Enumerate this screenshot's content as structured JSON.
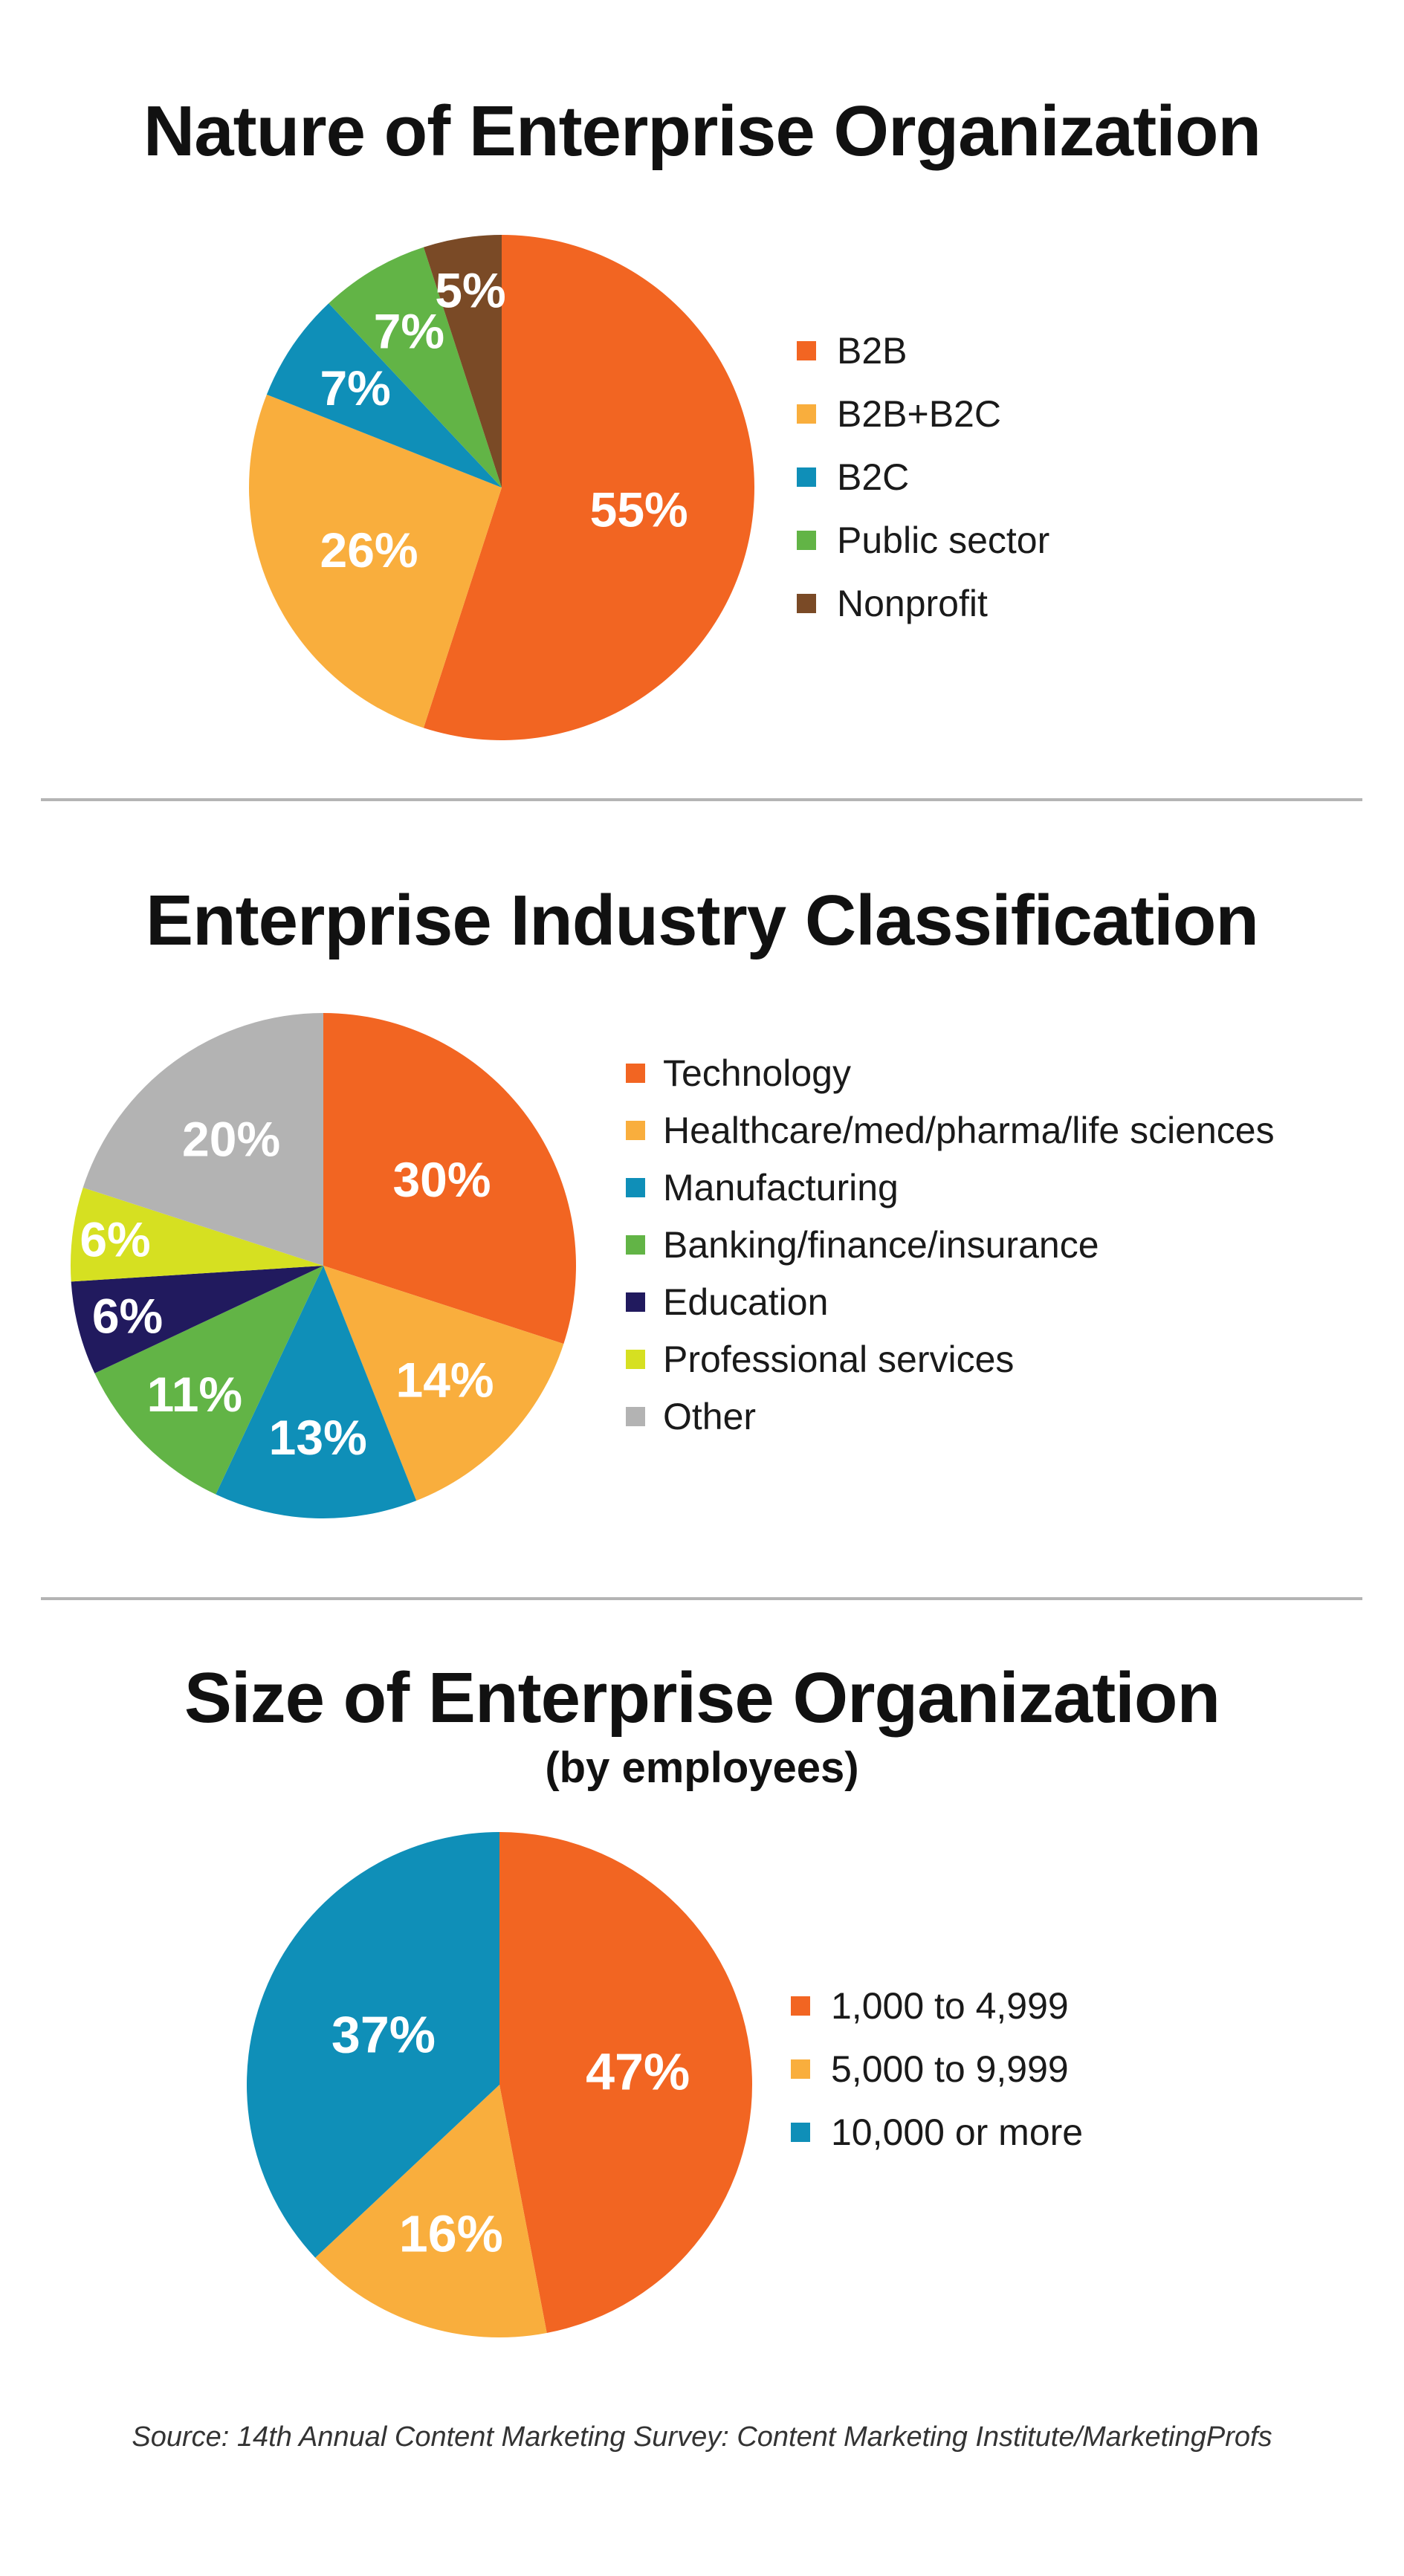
{
  "chart_data": [
    {
      "type": "pie",
      "title": "Nature of Enterprise Organization",
      "categories": [
        "B2B",
        "B2B+B2C",
        "B2C",
        "Public sector",
        "Nonprofit"
      ],
      "values": [
        55,
        26,
        7,
        7,
        5
      ],
      "labels": [
        "55%",
        "26%",
        "7%",
        "7%",
        "5%"
      ],
      "colors": [
        "#f26522",
        "#f9ae3d",
        "#0f8fb8",
        "#62b446",
        "#7a4a26"
      ],
      "legend_position": "right"
    },
    {
      "type": "pie",
      "title": "Enterprise Industry Classification",
      "categories": [
        "Technology",
        "Healthcare/med/pharma/life sciences",
        "Manufacturing",
        "Banking/finance/insurance",
        "Education",
        "Professional services",
        "Other"
      ],
      "values": [
        30,
        14,
        13,
        11,
        6,
        6,
        20
      ],
      "labels": [
        "30%",
        "14%",
        "13%",
        "11%",
        "6%",
        "6%",
        "20%"
      ],
      "colors": [
        "#f26522",
        "#f9ae3d",
        "#0f8fb8",
        "#62b446",
        "#211a5e",
        "#d6e021",
        "#b3b3b3"
      ],
      "legend_position": "right"
    },
    {
      "type": "pie",
      "title": "Size of Enterprise Organization",
      "subtitle": "(by employees)",
      "categories": [
        "1,000 to 4,999",
        "5,000 to 9,999",
        "10,000 or more"
      ],
      "values": [
        47,
        16,
        37
      ],
      "labels": [
        "47%",
        "16%",
        "37%"
      ],
      "colors": [
        "#f26522",
        "#f9ae3d",
        "#0f8fb8"
      ],
      "legend_position": "right"
    }
  ],
  "source": "Source: 14th Annual Content Marketing Survey: Content Marketing Institute/MarketingProfs"
}
